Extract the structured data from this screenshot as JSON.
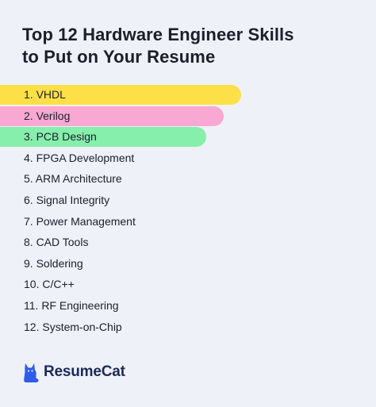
{
  "title_lines": [
    "Top 12 Hardware Engineer Skills",
    "to Put on Your Resume"
  ],
  "skills": [
    {
      "label": "1. VHDL",
      "highlight": "#fde047"
    },
    {
      "label": "2. Verilog",
      "highlight": "#f9a8d4"
    },
    {
      "label": "3. PCB Design",
      "highlight": "#86efac"
    },
    {
      "label": "4. FPGA Development"
    },
    {
      "label": "5. ARM Architecture"
    },
    {
      "label": "6. Signal Integrity"
    },
    {
      "label": "7. Power Management"
    },
    {
      "label": "8. CAD Tools"
    },
    {
      "label": "9. Soldering"
    },
    {
      "label": "10. C/C++"
    },
    {
      "label": "11. RF Engineering"
    },
    {
      "label": "12. System-on-Chip"
    }
  ],
  "brand": {
    "name": "ResumeCat",
    "icon": "cat-icon",
    "color": "#2f5ce8"
  }
}
